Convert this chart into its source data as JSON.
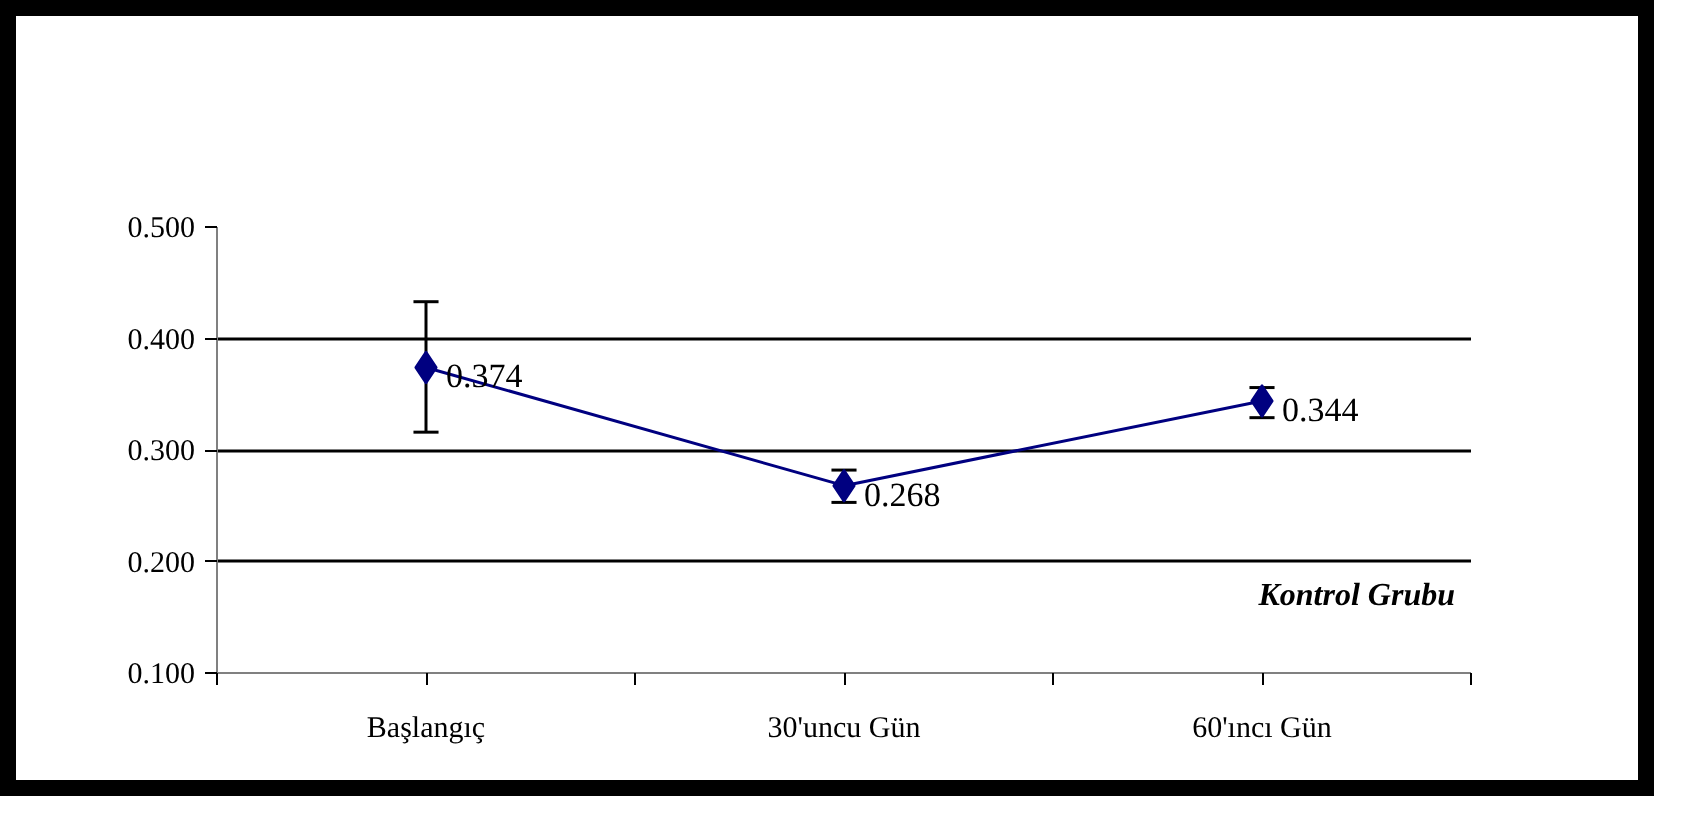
{
  "chart_data": {
    "type": "line",
    "categories": [
      "Başlangıç",
      "30'uncu Gün",
      "60'ıncı Gün"
    ],
    "series": [
      {
        "color": "#000080",
        "values": [
          0.374,
          0.268,
          0.344
        ],
        "errors": [
          [
            0.316,
            0.433
          ],
          [
            0.253,
            0.282
          ],
          [
            0.329,
            0.356
          ]
        ]
      }
    ],
    "ylim": [
      0.1,
      0.5
    ],
    "yticks": [
      {
        "value": 0.1,
        "label": "0.100"
      },
      {
        "value": 0.2,
        "label": "0.200"
      },
      {
        "value": 0.3,
        "label": "0.300"
      },
      {
        "value": 0.4,
        "label": "0.400"
      },
      {
        "value": 0.5,
        "label": "0.500"
      }
    ],
    "grid": "y",
    "marker": "diamond",
    "line_style": "solid",
    "data_labels": true,
    "annotations": [
      "Kontrol Grubu"
    ]
  }
}
